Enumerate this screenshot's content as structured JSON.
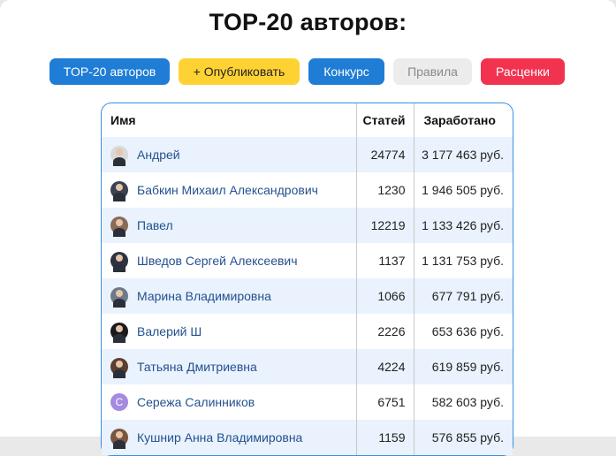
{
  "page": {
    "title": "TOP-20 авторов:"
  },
  "nav": {
    "top20": "TOP-20 авторов",
    "publish": "+ Опубликовать",
    "contest": "Конкурс",
    "rules": "Правила",
    "prices": "Расценки"
  },
  "table": {
    "headers": {
      "name": "Имя",
      "articles": "Статей",
      "earned": "Заработано"
    },
    "rows": [
      {
        "name": "Андрей",
        "articles": "24774",
        "earned": "3 177 463 руб.",
        "avatar": "sketch-avatar-icon",
        "avatar_color": "#d9d9d9"
      },
      {
        "name": "Бабкин Михаил Александрович",
        "articles": "1230",
        "earned": "1 946 505 руб.",
        "avatar": "user-photo-icon",
        "avatar_color": "#3b4252"
      },
      {
        "name": "Павел",
        "articles": "12219",
        "earned": "1 133 426 руб.",
        "avatar": "user-photo-icon",
        "avatar_color": "#8a6a58"
      },
      {
        "name": "Шведов Сергей Алексеевич",
        "articles": "1137",
        "earned": "1 131 753 руб.",
        "avatar": "user-photo-icon",
        "avatar_color": "#2c3340"
      },
      {
        "name": "Марина Владимировна",
        "articles": "1066",
        "earned": "677 791 руб.",
        "avatar": "user-photo-icon",
        "avatar_color": "#6c7a89"
      },
      {
        "name": "Валерий Ш",
        "articles": "2226",
        "earned": "653 636 руб.",
        "avatar": "user-photo-icon",
        "avatar_color": "#1a1a1a"
      },
      {
        "name": "Татьяна Дмитриевна",
        "articles": "4224",
        "earned": "619 859 руб.",
        "avatar": "user-photo-icon",
        "avatar_color": "#5a3e30"
      },
      {
        "name": "Сережа Салинников",
        "articles": "6751",
        "earned": "582 603 руб.",
        "avatar": "letter-avatar-icon",
        "avatar_color": "#a48ae0",
        "avatar_letter": "С"
      },
      {
        "name": "Кушнир Анна Владимировна",
        "articles": "1159",
        "earned": "576 855 руб.",
        "avatar": "user-photo-icon",
        "avatar_color": "#7a5540"
      }
    ]
  },
  "colors": {
    "primary": "#1f7dd6",
    "warning": "#ffd234",
    "danger": "#f2334f",
    "muted": "#ececec",
    "row_stripe": "#e9f2fd",
    "link": "#24518f"
  }
}
